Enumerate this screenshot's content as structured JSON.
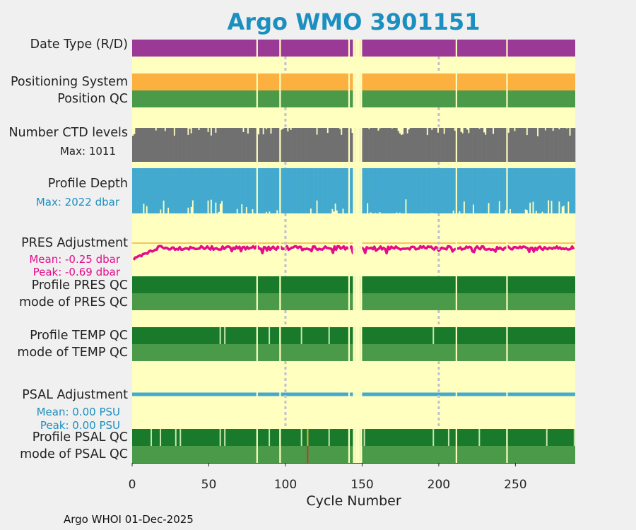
{
  "chart_data": {
    "type": "panel-timeseries",
    "title": "Argo WMO 3901151",
    "xlabel": "Cycle Number",
    "xlim": [
      0,
      289
    ],
    "xticks": [
      0,
      50,
      100,
      150,
      200,
      250
    ],
    "footer": "Argo WHOI 01-Dec-2025",
    "labels": {
      "date_type": "Date Type (R/D)",
      "positioning_system": "Positioning System",
      "position_qc": "Position QC",
      "ctd_levels": "Number CTD levels",
      "ctd_max": "Max: 1011",
      "profile_depth": "Profile Depth",
      "depth_max": "Max: 2022 dbar",
      "pres_adjustment": "PRES Adjustment",
      "pres_mean": "Mean: -0.25 dbar",
      "pres_peak": "Peak: -0.69 dbar",
      "profile_pres_qc": "Profile PRES QC",
      "mode_pres_qc": "mode of PRES QC",
      "profile_temp_qc": "Profile TEMP QC",
      "mode_temp_qc": "mode of TEMP QC",
      "psal_adjustment": "PSAL Adjustment",
      "psal_mean": "Mean: 0.00 PSU",
      "psal_peak": "Peak: 0.00 PSU",
      "profile_psal_qc": "Profile PSAL QC",
      "mode_psal_qc": "mode of PSAL QC"
    },
    "missing_cycles": [
      81,
      96,
      141,
      144,
      145,
      146,
      147,
      148,
      149,
      211,
      244
    ],
    "highlight_cycles": [
      100,
      200
    ],
    "ctd_levels_max": 1011,
    "profile_depth_max_dbar": 2022,
    "pres_adjustment_mean_dbar": -0.25,
    "pres_adjustment_peak_dbar": -0.69,
    "psal_adjustment_mean_psu": 0.0,
    "psal_adjustment_peak_psu": 0.0,
    "temp_qc_flag_cycles": [
      57,
      60,
      89,
      96,
      110,
      128,
      141,
      147,
      196
    ],
    "psal_qc_flag_cycles": [
      12,
      18,
      28,
      31,
      57,
      60,
      89,
      96,
      110,
      114,
      128,
      141,
      147,
      151,
      196,
      206,
      226,
      244,
      270,
      288
    ],
    "psal_qc_bad_cycle": 114,
    "colors": {
      "background": "#ffffc0",
      "date_type": "#9a3a96",
      "positioning": "#fbb040",
      "position_qc": "#4a9a4a",
      "ctd": "#707070",
      "depth": "#43a9cf",
      "pres_line": "#e60b8a",
      "dark_green": "#187a2a",
      "light_green": "#4a9a4a",
      "psal_line": "#43a9cf",
      "title": "#1b8fc0"
    }
  }
}
